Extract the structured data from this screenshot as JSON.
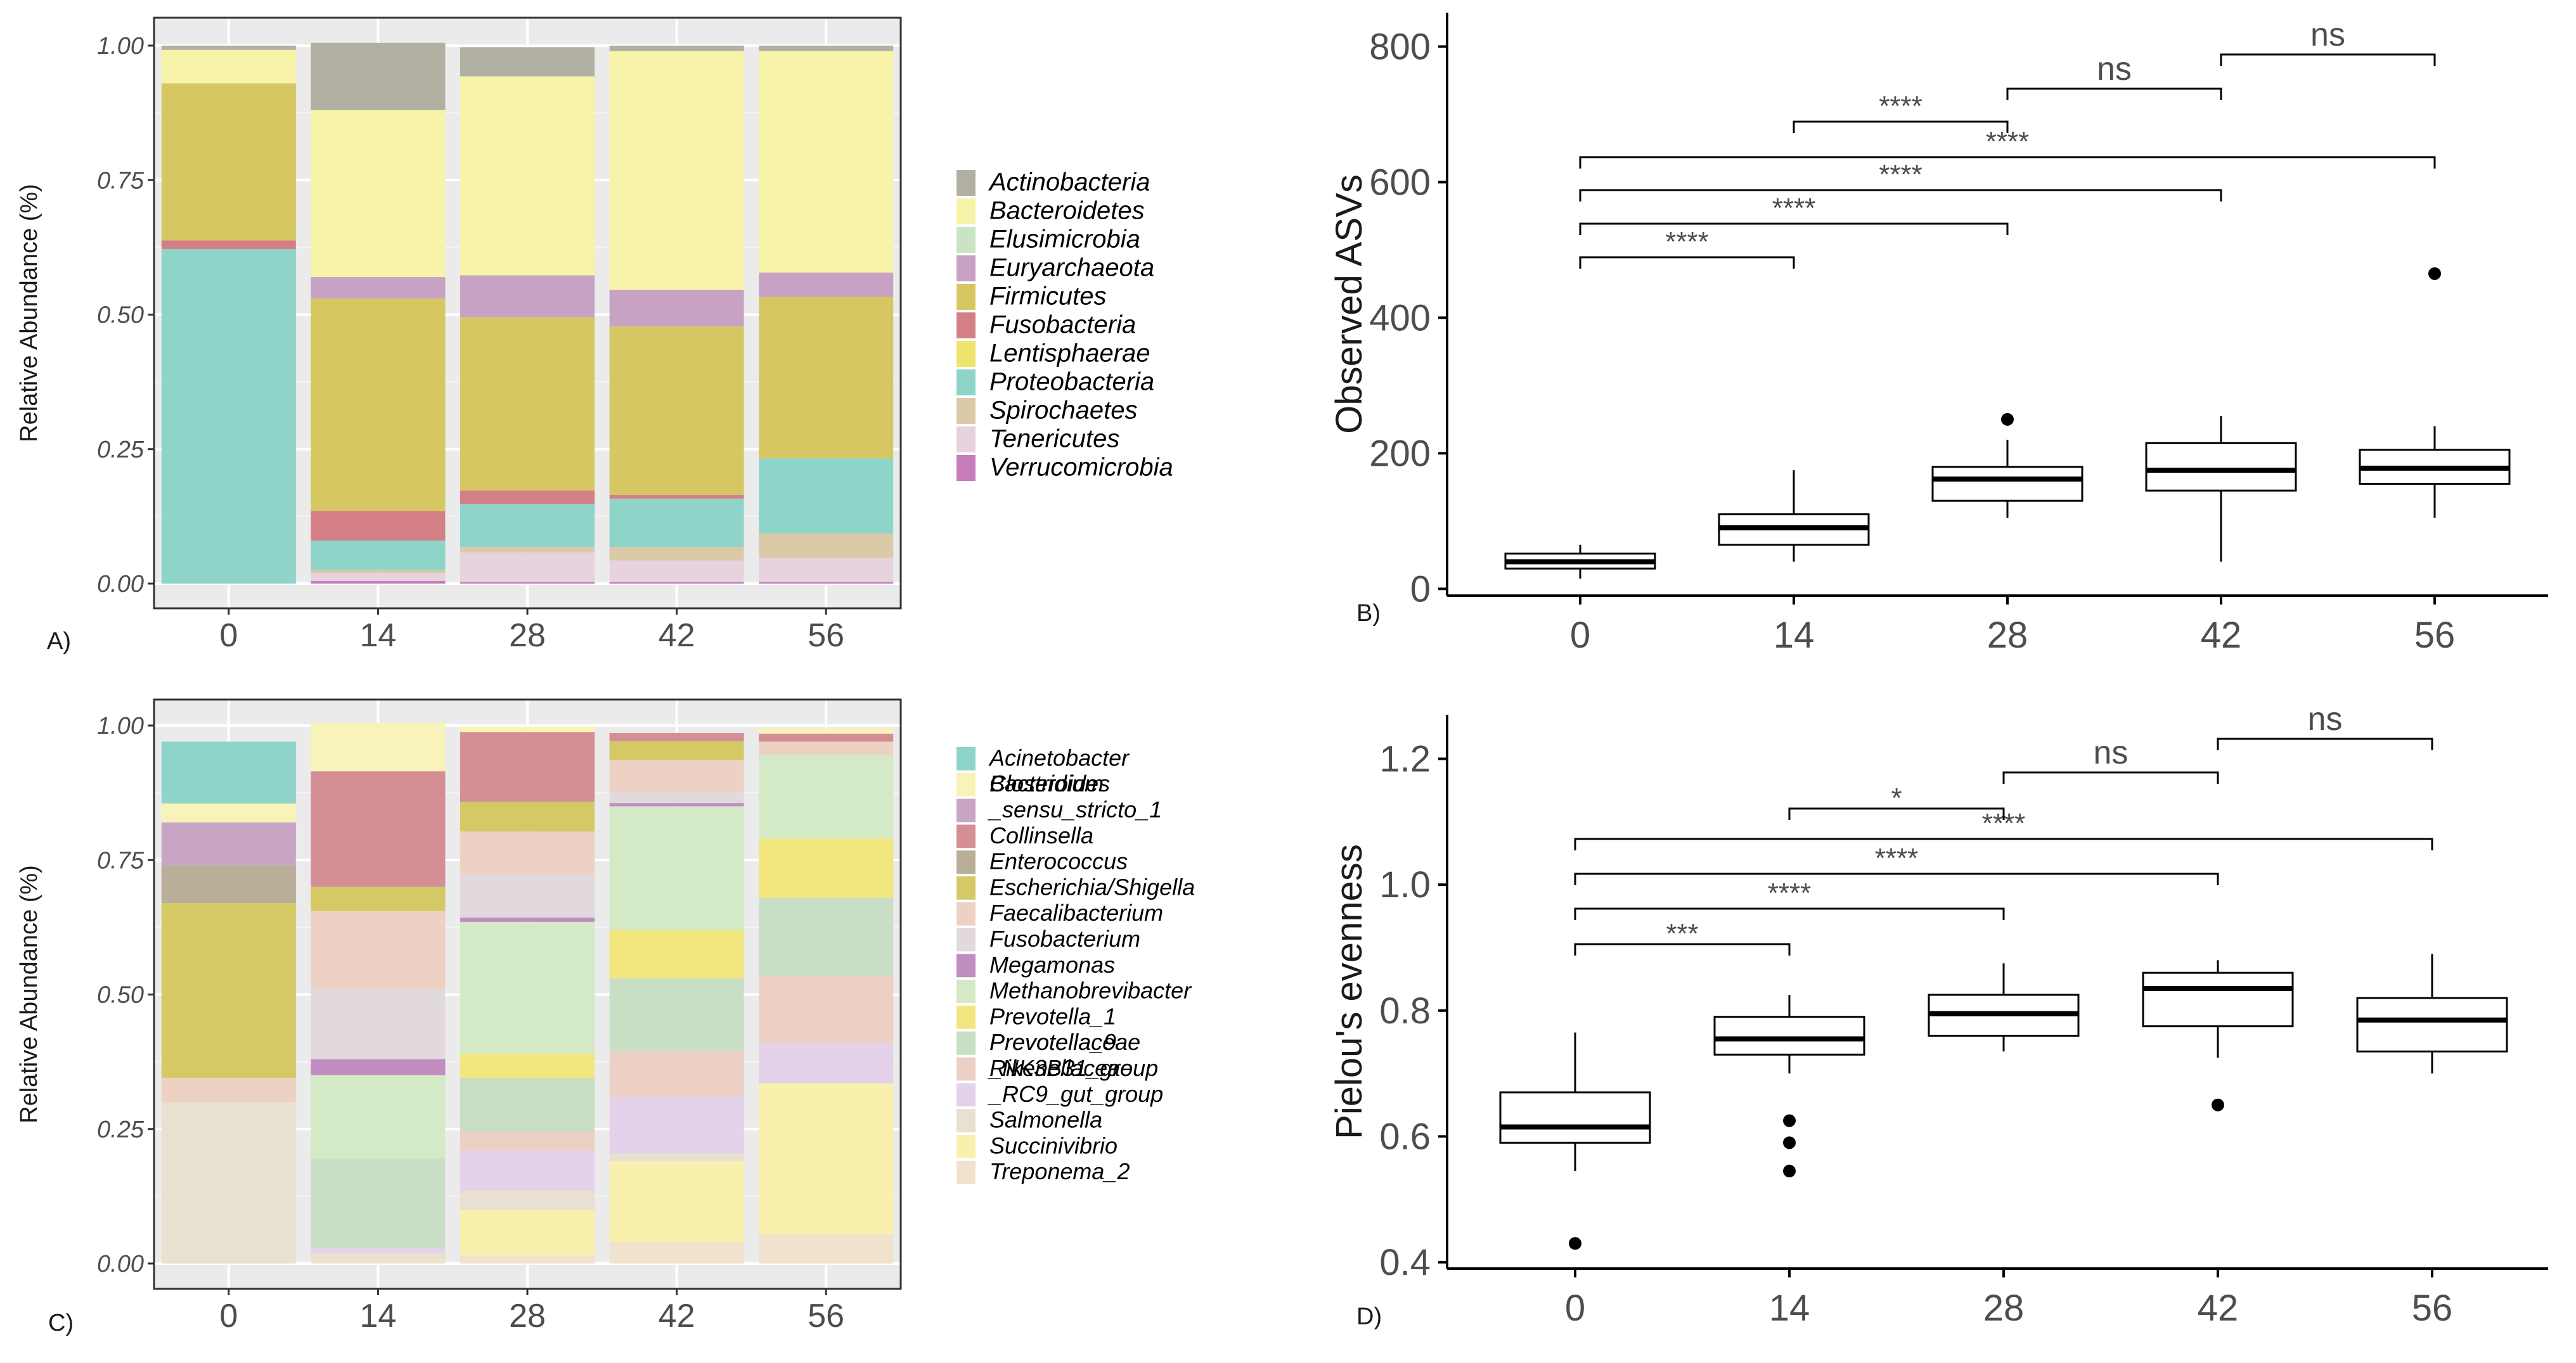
{
  "chart_data": [
    {
      "panel": "A)",
      "type": "bar",
      "ylabel": "Relative Abundance (%)",
      "ylim": [
        0,
        1
      ],
      "yticks": [
        "0.00",
        "0.25",
        "0.50",
        "0.75",
        "1.00"
      ],
      "categories": [
        "0",
        "14",
        "28",
        "42",
        "56"
      ],
      "legend_position": "right",
      "series": [
        {
          "name": "Verrucomicrobia",
          "color": "#c77cbb",
          "values": [
            0,
            0.005,
            0.003,
            0.003,
            0.003
          ]
        },
        {
          "name": "Tenericutes",
          "color": "#e6d3de",
          "values": [
            0,
            0.015,
            0.055,
            0.04,
            0.045
          ]
        },
        {
          "name": "Spirochaetes",
          "color": "#dcc9a8",
          "values": [
            0,
            0.005,
            0.01,
            0.025,
            0.045
          ]
        },
        {
          "name": "Proteobacteria",
          "color": "#8fd4c8",
          "values": [
            0.622,
            0.055,
            0.08,
            0.09,
            0.14
          ]
        },
        {
          "name": "Lentisphaerae",
          "color": "#f0e46e",
          "values": [
            0,
            0,
            0,
            0,
            0
          ]
        },
        {
          "name": "Fusobacteria",
          "color": "#d47f86",
          "values": [
            0.016,
            0.055,
            0.025,
            0.007,
            0
          ]
        },
        {
          "name": "Firmicutes",
          "color": "#d6c763",
          "values": [
            0.292,
            0.395,
            0.322,
            0.313,
            0.3
          ]
        },
        {
          "name": "Euryarchaeota",
          "color": "#c7a2c4",
          "values": [
            0,
            0.04,
            0.078,
            0.068,
            0.045
          ]
        },
        {
          "name": "Elusimicrobia",
          "color": "#c9e3c3",
          "values": [
            0,
            0,
            0,
            0,
            0
          ]
        },
        {
          "name": "Bacteroidetes",
          "color": "#f7f3a8",
          "values": [
            0.062,
            0.31,
            0.37,
            0.444,
            0.412
          ]
        },
        {
          "name": "Actinobacteria",
          "color": "#b1b0a2",
          "values": [
            0.008,
            0.125,
            0.054,
            0.01,
            0.01
          ]
        }
      ]
    },
    {
      "panel": "B)",
      "type": "box",
      "ylabel": "Observed ASVs",
      "ylim": [
        -10,
        850
      ],
      "yticks": [
        "0",
        "200",
        "400",
        "600",
        "800"
      ],
      "categories": [
        "0",
        "14",
        "28",
        "42",
        "56"
      ],
      "boxes": [
        {
          "min": 15,
          "q1": 30,
          "median": 40,
          "q3": 52,
          "max": 65,
          "outliers": []
        },
        {
          "min": 40,
          "q1": 65,
          "median": 90,
          "q3": 110,
          "max": 175,
          "outliers": []
        },
        {
          "min": 105,
          "q1": 130,
          "median": 162,
          "q3": 180,
          "max": 220,
          "outliers": [
            250
          ]
        },
        {
          "min": 40,
          "q1": 145,
          "median": 175,
          "q3": 215,
          "max": 255,
          "outliers": []
        },
        {
          "min": 105,
          "q1": 155,
          "median": 178,
          "q3": 205,
          "max": 240,
          "outliers": [
            465
          ]
        }
      ],
      "significance": [
        {
          "from": "0",
          "to": "14",
          "label": "****"
        },
        {
          "from": "0",
          "to": "28",
          "label": "****"
        },
        {
          "from": "0",
          "to": "42",
          "label": "****"
        },
        {
          "from": "0",
          "to": "56",
          "label": "****"
        },
        {
          "from": "14",
          "to": "28",
          "label": "****"
        },
        {
          "from": "28",
          "to": "42",
          "label": "ns"
        },
        {
          "from": "42",
          "to": "56",
          "label": "ns"
        }
      ]
    },
    {
      "panel": "C)",
      "type": "bar",
      "ylabel": "Relative Abundance (%)",
      "ylim": [
        0,
        1
      ],
      "yticks": [
        "0.00",
        "0.25",
        "0.50",
        "0.75",
        "1.00"
      ],
      "categories": [
        "0",
        "14",
        "28",
        "42",
        "56"
      ],
      "legend_position": "right",
      "series": [
        {
          "name": "Treponema_2",
          "color": "#f0e2cc",
          "values": [
            0,
            0.01,
            0.015,
            0.04,
            0.055
          ]
        },
        {
          "name": "Succinivibrio",
          "color": "#f8f0ac",
          "values": [
            0,
            0,
            0.085,
            0.15,
            0.28
          ]
        },
        {
          "name": "Salmonella",
          "color": "#e8e0d0",
          "values": [
            0.3,
            0.01,
            0.035,
            0.015,
            0
          ]
        },
        {
          "name": "Rikenellaceae _RC9_gut_group",
          "color": "#e3d2e9",
          "values": [
            0,
            0.01,
            0.075,
            0.105,
            0.075
          ]
        },
        {
          "name": "Prevotellaceae _NK3B31_group",
          "color": "#ecd0c4",
          "values": [
            0,
            0,
            0.035,
            0.085,
            0.125
          ]
        },
        {
          "name": "Prevotella_9",
          "color": "#c9dfc5",
          "values": [
            0,
            0.165,
            0.1,
            0.135,
            0.145
          ]
        },
        {
          "name": "Prevotella_1",
          "color": "#f2e67e",
          "values": [
            0,
            0,
            0.045,
            0.09,
            0.11
          ]
        },
        {
          "name": "Methanobrevibacter",
          "color": "#d4e9c6",
          "values": [
            0,
            0.155,
            0.245,
            0.23,
            0.155
          ]
        },
        {
          "name": "Megamonas",
          "color": "#c08dc0",
          "values": [
            0,
            0.03,
            0.008,
            0.006,
            0
          ]
        },
        {
          "name": "Fusobacterium",
          "color": "#e2d9de",
          "values": [
            0,
            0.13,
            0.08,
            0.02,
            0
          ]
        },
        {
          "name": "Faecalibacterium",
          "color": "#edd2c3",
          "values": [
            0.045,
            0.145,
            0.08,
            0.06,
            0.025
          ]
        },
        {
          "name": "Escherichia/Shigella",
          "color": "#d4c965",
          "values": [
            0.325,
            0.045,
            0.055,
            0.035,
            0
          ]
        },
        {
          "name": "Enterococcus",
          "color": "#b9ae98",
          "values": [
            0.07,
            0,
            0,
            0,
            0
          ]
        },
        {
          "name": "Collinsella",
          "color": "#d48f95",
          "values": [
            0,
            0.215,
            0.13,
            0.015,
            0.015
          ]
        },
        {
          "name": "Clostridium _sensu_stricto_1",
          "color": "#c9a5c5",
          "values": [
            0.08,
            0,
            0,
            0,
            0
          ]
        },
        {
          "name": "Bacteroides",
          "color": "#f8f3b8",
          "values": [
            0.035,
            0.09,
            0.01,
            0,
            0.01
          ]
        },
        {
          "name": "Acinetobacter",
          "color": "#8fd4cb",
          "values": [
            0.115,
            0,
            0,
            0,
            0
          ]
        }
      ]
    },
    {
      "panel": "D)",
      "type": "box",
      "ylabel": "Pielou's evenness",
      "ylim": [
        0.39,
        1.27
      ],
      "yticks": [
        "0.4",
        "0.6",
        "0.8",
        "1.0",
        "1.2"
      ],
      "categories": [
        "0",
        "14",
        "28",
        "42",
        "56"
      ],
      "boxes": [
        {
          "min": 0.545,
          "q1": 0.59,
          "median": 0.615,
          "q3": 0.67,
          "max": 0.765,
          "outliers": [
            0.43
          ]
        },
        {
          "min": 0.7,
          "q1": 0.73,
          "median": 0.755,
          "q3": 0.79,
          "max": 0.825,
          "outliers": [
            0.625,
            0.59,
            0.545
          ]
        },
        {
          "min": 0.735,
          "q1": 0.76,
          "median": 0.795,
          "q3": 0.825,
          "max": 0.875,
          "outliers": []
        },
        {
          "min": 0.725,
          "q1": 0.775,
          "median": 0.835,
          "q3": 0.86,
          "max": 0.88,
          "outliers": [
            0.65
          ]
        },
        {
          "min": 0.7,
          "q1": 0.735,
          "median": 0.785,
          "q3": 0.82,
          "max": 0.89,
          "outliers": []
        }
      ],
      "significance": [
        {
          "from": "0",
          "to": "14",
          "label": "***"
        },
        {
          "from": "0",
          "to": "28",
          "label": "****"
        },
        {
          "from": "0",
          "to": "42",
          "label": "****"
        },
        {
          "from": "0",
          "to": "56",
          "label": "****"
        },
        {
          "from": "14",
          "to": "28",
          "label": "*"
        },
        {
          "from": "28",
          "to": "42",
          "label": "ns"
        },
        {
          "from": "42",
          "to": "56",
          "label": "ns"
        }
      ]
    }
  ]
}
